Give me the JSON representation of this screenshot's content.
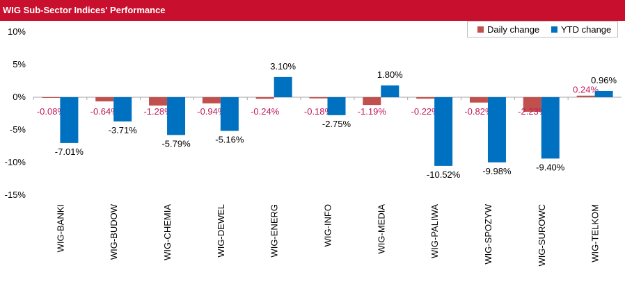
{
  "title": "WIG Sub-Sector Indices' Performance",
  "colors": {
    "header_bg": "#c8102e",
    "daily": "#c0504d",
    "ytd": "#0070c0",
    "daily_label": "#c0185a"
  },
  "chart_data": {
    "type": "bar",
    "title": "WIG Sub-Sector Indices' Performance",
    "categories": [
      "WIG-BANKI",
      "WIG-BUDOW",
      "WIG-CHEMIA",
      "WIG-DEWEL",
      "WIG-ENERG",
      "WIG-INFO",
      "WIG-MEDIA",
      "WIG-PALIWA",
      "WIG-SPOZYW",
      "WIG-SUROWC",
      "WIG-TELKOM"
    ],
    "series": [
      {
        "name": "Daily change",
        "color": "#c0504d",
        "values": [
          -0.08,
          -0.64,
          -1.28,
          -0.94,
          -0.24,
          -0.18,
          -1.19,
          -0.22,
          -0.82,
          -2.23,
          0.24
        ],
        "labels": [
          "-0.08%",
          "-0.64%",
          "-1.28%",
          "-0.94%",
          "-0.24%",
          "-0.18%",
          "-1.19%",
          "-0.22%",
          "-0.82%",
          "-2.23%",
          "0.24%"
        ]
      },
      {
        "name": "YTD change",
        "color": "#0070c0",
        "values": [
          -7.01,
          -3.71,
          -5.79,
          -5.16,
          3.1,
          -2.75,
          1.8,
          -10.52,
          -9.98,
          -9.4,
          0.96
        ],
        "labels": [
          "-7.01%",
          "-3.71%",
          "-5.79%",
          "-5.16%",
          "3.10%",
          "-2.75%",
          "1.80%",
          "-10.52%",
          "-9.98%",
          "-9.40%",
          "0.96%"
        ]
      }
    ],
    "ylim": [
      -15,
      10
    ],
    "yticks": [
      10,
      5,
      0,
      -5,
      -10,
      -15
    ],
    "ytick_labels": [
      "10%",
      "5%",
      "0%",
      "-5%",
      "-10%",
      "-15%"
    ],
    "grid": false,
    "legend_position": "top-right"
  }
}
